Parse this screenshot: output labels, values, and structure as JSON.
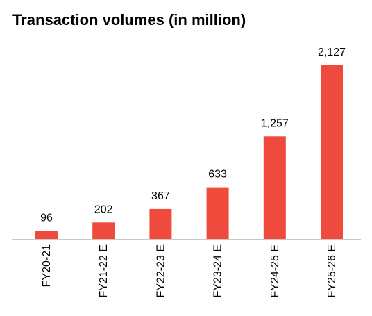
{
  "chart_data": {
    "type": "bar",
    "title": "Transaction volumes (in million)",
    "categories": [
      "FY20-21",
      "FY21-22 E",
      "FY22-23 E",
      "FY23-24 E",
      "FY24-25 E",
      "FY25-26 E"
    ],
    "values": [
      96,
      202,
      367,
      633,
      1257,
      2127
    ],
    "value_labels": [
      "96",
      "202",
      "367",
      "633",
      "1,257",
      "2,127"
    ],
    "xlabel": "",
    "ylabel": "",
    "ylim": [
      0,
      2127
    ],
    "grid": false,
    "legend": "none",
    "bar_color": "#F04A3C",
    "axis_color": "#C8C8C8",
    "text_color": "#000000"
  }
}
